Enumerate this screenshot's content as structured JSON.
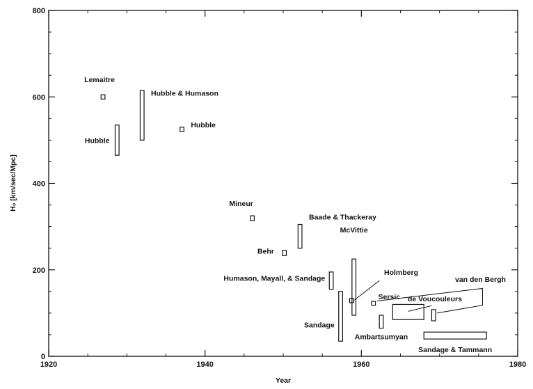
{
  "chart_data": {
    "type": "scatter",
    "title": "",
    "xlabel": "Year",
    "ylabel": "H₀ [km/sec/Mpc]",
    "xlim": [
      1920,
      1980
    ],
    "ylim": [
      0,
      800
    ],
    "xticks": [
      "1920",
      "1940",
      "1960",
      "1980"
    ],
    "yticks": [
      "0",
      "200",
      "400",
      "600",
      "800"
    ],
    "grid": false,
    "series": [
      {
        "points": [
          {
            "label": "Lemaitre",
            "year": [
              1926.7,
              1927.2
            ],
            "h0": [
              595,
              605
            ]
          },
          {
            "label": "Hubble",
            "year": [
              1928.5,
              1929.0
            ],
            "h0": [
              465,
              535
            ]
          },
          {
            "label": "Hubble & Humason",
            "year": [
              1931.7,
              1932.2
            ],
            "h0": [
              500,
              615
            ]
          },
          {
            "label": "Hubble",
            "year": [
              1936.8,
              1937.3
            ],
            "h0": [
              520,
              530
            ]
          },
          {
            "label": "Mineur",
            "year": [
              1945.8,
              1946.3
            ],
            "h0": [
              314,
              325
            ]
          },
          {
            "label": "Baade & Thackeray",
            "year": [
              1951.9,
              1952.4
            ],
            "h0": [
              250,
              305
            ]
          },
          {
            "label": "Behr",
            "year": [
              1949.9,
              1950.4
            ],
            "h0": [
              233,
              245
            ]
          },
          {
            "label": "McVittie",
            "year": [
              1958.8,
              1959.3
            ],
            "h0": [
              95,
              225
            ]
          },
          {
            "label": "Humason, Mayall, & Sandage",
            "year": [
              1955.9,
              1956.4
            ],
            "h0": [
              155,
              195
            ]
          },
          {
            "label": "Holmberg",
            "year": [
              1958.5,
              1959.0
            ],
            "h0": [
              124,
              134
            ]
          },
          {
            "label": "Sandage",
            "year": [
              1957.1,
              1957.6
            ],
            "h0": [
              35,
              150
            ]
          },
          {
            "label": "Sersic",
            "year": [
              1961.3,
              1961.8
            ],
            "h0": [
              118,
              127
            ]
          },
          {
            "label": "Ambartsumyan",
            "year": [
              1962.3,
              1962.8
            ],
            "h0": [
              65,
              95
            ]
          },
          {
            "label": "de Voucouleurs",
            "year": [
              1964.0,
              1968.0
            ],
            "h0": [
              85,
              120
            ]
          },
          {
            "label": "van den Bergh",
            "year": [
              1969.0,
              1969.5
            ],
            "h0": [
              82,
              108
            ]
          },
          {
            "label": "Sandage & Tammann",
            "year": [
              1968.0,
              1976.0
            ],
            "h0": [
              40,
              56
            ]
          }
        ]
      }
    ]
  }
}
